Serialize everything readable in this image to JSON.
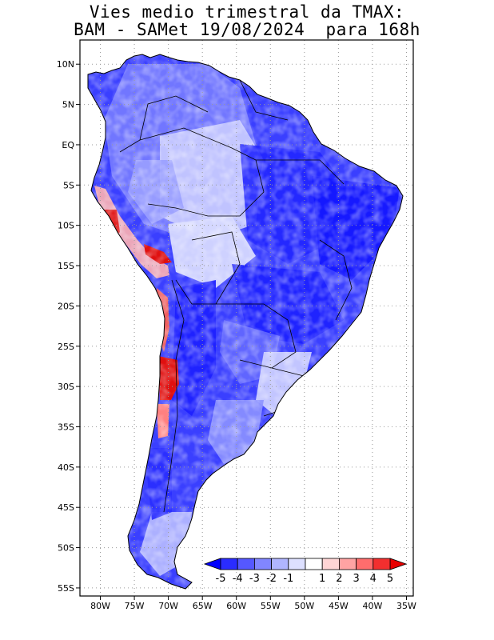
{
  "title": {
    "line1": "Vies medio trimestral da TMAX:",
    "line2": "BAM - SAMet 19/08/2024  para 168h"
  },
  "map": {
    "y_axis_labels": [
      "10N",
      "5N",
      "EQ",
      "5S",
      "10S",
      "15S",
      "20S",
      "25S",
      "30S",
      "35S",
      "40S",
      "45S",
      "50S",
      "55S"
    ],
    "x_axis_labels": [
      "80W",
      "75W",
      "70W",
      "65W",
      "60W",
      "55W",
      "50W",
      "45W",
      "40W",
      "35W"
    ],
    "lon_range": [
      -83,
      -34
    ],
    "lat_range": [
      -56,
      13
    ],
    "grid": true
  },
  "colorbar": {
    "labels": [
      "-5",
      "-4",
      "-3",
      "-2",
      "-1",
      "1",
      "2",
      "3",
      "4",
      "5"
    ],
    "colors": [
      "#0000ff",
      "#2a2cff",
      "#5558ff",
      "#8186ff",
      "#b0b5ff",
      "#dde0ff",
      "#ffffff",
      "#ffd5d5",
      "#ffa3a3",
      "#ff6d6d",
      "#f22f2f",
      "#e80000"
    ]
  },
  "colors": {
    "deep_blue": "#1a1dff",
    "mid_blue": "#5a5fff",
    "light_blue": "#c9ccff",
    "red": "#e01010"
  }
}
